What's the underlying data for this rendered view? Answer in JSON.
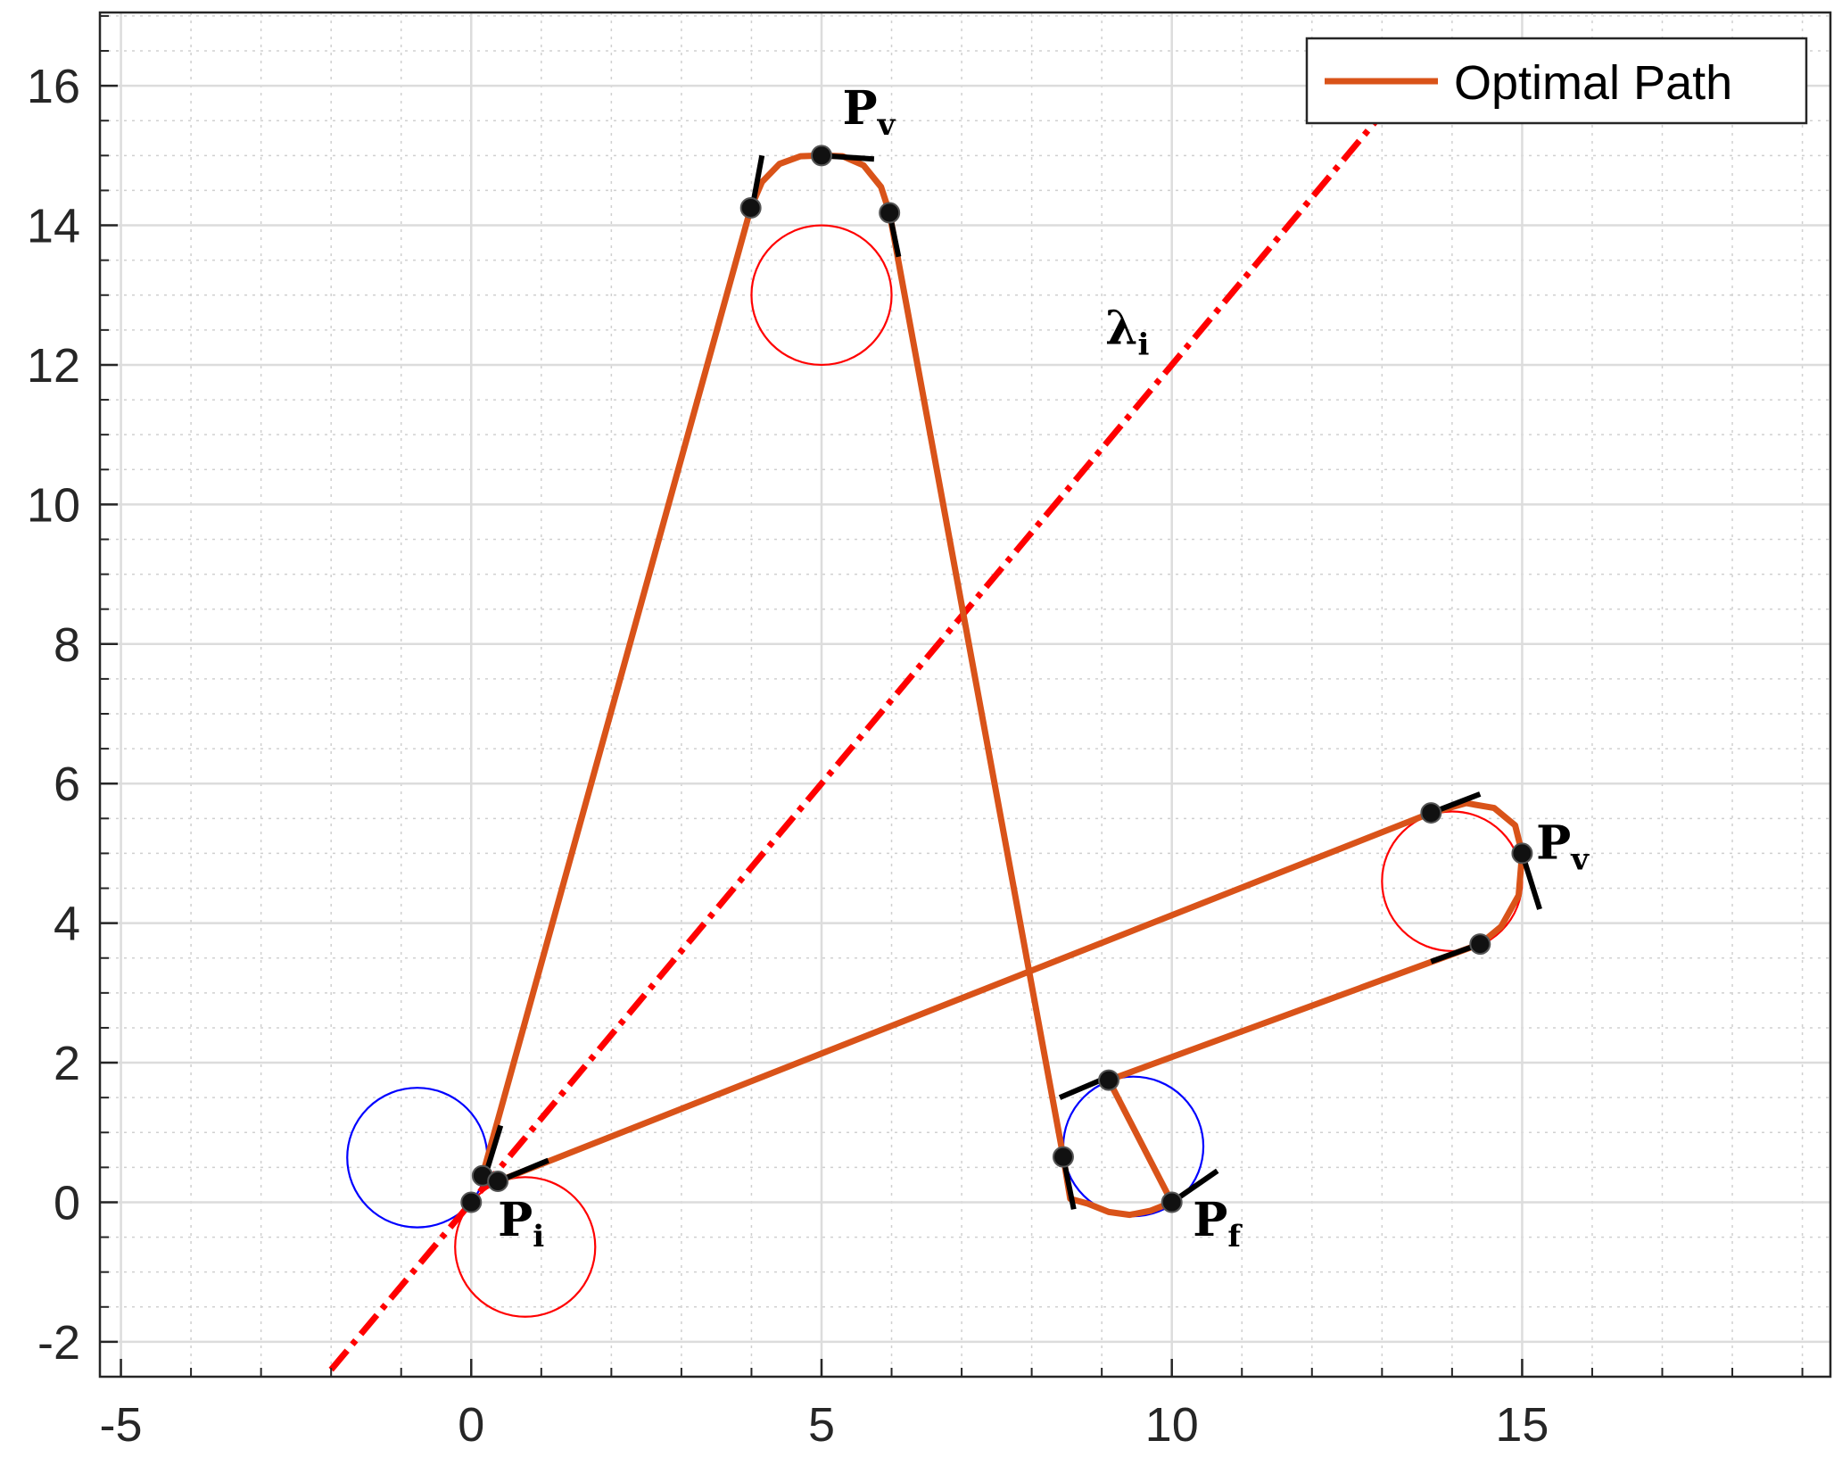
{
  "chart_data": {
    "type": "line",
    "title": "",
    "xlabel": "",
    "ylabel": "",
    "xlim": [
      -5.3,
      19.4
    ],
    "ylim": [
      -2.5,
      17.05
    ],
    "grid": true,
    "minor_grid": true,
    "xticks": [
      -5,
      0,
      5,
      10,
      15
    ],
    "yticks": [
      -2,
      0,
      2,
      4,
      6,
      8,
      10,
      12,
      14,
      16
    ],
    "xtick_labels": [
      "-5",
      "0",
      "5",
      "10",
      "15"
    ],
    "ytick_labels": [
      "-2",
      "0",
      "2",
      "4",
      "6",
      "8",
      "10",
      "12",
      "14",
      "16"
    ],
    "legend": {
      "position": "top-right",
      "entries": [
        {
          "name": "Optimal Path",
          "color": "#D95319"
        }
      ]
    },
    "colors": {
      "path": "#D95319",
      "line": "#FF0000",
      "circle_right": "#FF0000",
      "circle_left": "#0000FF",
      "tangent": "#000000",
      "point": "#000000"
    },
    "series": [
      {
        "name": "Optimal Path",
        "x": [
          0.16,
          3.99,
          4.15,
          4.4,
          4.7,
          5.0,
          5.3,
          5.6,
          5.85,
          5.97,
          8.45,
          8.55,
          8.8,
          9.1,
          9.4,
          9.7,
          10.0,
          9.1,
          14.4,
          14.7,
          14.95,
          15.0,
          14.9,
          14.6,
          14.2,
          13.7,
          0.38
        ],
        "y": [
          0.38,
          14.25,
          14.62,
          14.88,
          14.99,
          15.0,
          14.99,
          14.86,
          14.55,
          14.18,
          0.65,
          0.05,
          -0.02,
          -0.14,
          -0.18,
          -0.12,
          0.0,
          1.75,
          3.7,
          3.95,
          4.4,
          5.0,
          5.4,
          5.65,
          5.72,
          5.58,
          0.3
        ]
      },
      {
        "name": "",
        "style": "dash-dot",
        "x": [
          -2.0,
          13.0
        ],
        "y": [
          -2.4,
          15.6
        ]
      }
    ],
    "circles": [
      {
        "cx": 5.0,
        "cy": 13.0,
        "r": 1.0,
        "color": "red"
      },
      {
        "cx": -0.77,
        "cy": 0.64,
        "r": 1.0,
        "color": "blue"
      },
      {
        "cx": 0.77,
        "cy": -0.64,
        "r": 1.0,
        "color": "red"
      },
      {
        "cx": 9.45,
        "cy": 0.8,
        "r": 1.0,
        "color": "blue"
      },
      {
        "cx": 14.0,
        "cy": 4.6,
        "r": 1.0,
        "color": "red"
      }
    ],
    "tangent_segments": [
      [
        [
          4.02,
          14.3
        ],
        [
          4.15,
          15.0
        ]
      ],
      [
        [
          5.0,
          15.0
        ],
        [
          5.75,
          14.95
        ]
      ],
      [
        [
          5.97,
          14.18
        ],
        [
          6.1,
          13.55
        ]
      ],
      [
        [
          0.2,
          0.38
        ],
        [
          0.42,
          1.1
        ]
      ],
      [
        [
          0.38,
          0.3
        ],
        [
          1.1,
          0.6
        ]
      ],
      [
        [
          8.4,
          1.5
        ],
        [
          9.1,
          1.8
        ]
      ],
      [
        [
          8.45,
          0.65
        ],
        [
          8.6,
          -0.1
        ]
      ],
      [
        [
          10.0,
          0.0
        ],
        [
          10.65,
          0.45
        ]
      ],
      [
        [
          13.7,
          5.58
        ],
        [
          14.4,
          5.85
        ]
      ],
      [
        [
          15.0,
          5.0
        ],
        [
          15.25,
          4.2
        ]
      ],
      [
        [
          14.4,
          3.7
        ],
        [
          13.7,
          3.45
        ]
      ]
    ],
    "points": {
      "x": [
        0.0,
        0.16,
        0.38,
        3.99,
        5.0,
        5.97,
        8.45,
        9.1,
        10.0,
        13.7,
        15.0,
        14.4
      ],
      "y": [
        0.0,
        0.38,
        0.3,
        14.25,
        15.0,
        14.18,
        0.65,
        1.75,
        0.0,
        5.58,
        5.0,
        3.7
      ]
    },
    "annotations": [
      {
        "text": "P",
        "sub": "v",
        "x": 5.3,
        "y": 15.45
      },
      {
        "text": "P",
        "sub": "i",
        "x": 0.38,
        "y": -0.48
      },
      {
        "text": "P",
        "sub": "f",
        "x": 10.3,
        "y": -0.48
      },
      {
        "text": "P",
        "sub": "v",
        "x": 15.2,
        "y": 4.92
      },
      {
        "text": "λ",
        "sub": "i",
        "x": 9.05,
        "y": 12.3
      }
    ]
  }
}
